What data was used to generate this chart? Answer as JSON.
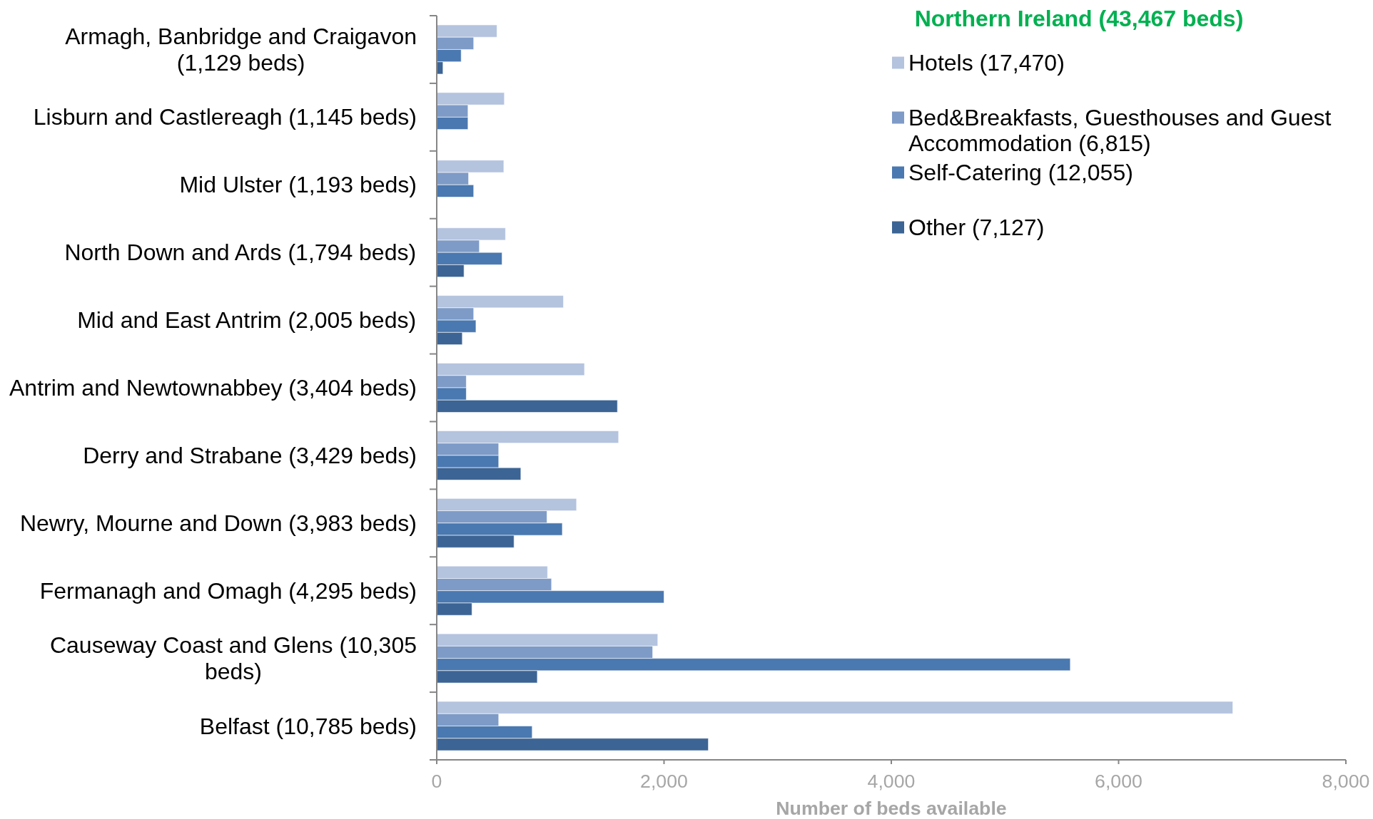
{
  "chart_data": {
    "type": "bar",
    "orientation": "horizontal",
    "title": "Northern Ireland (43,467 beds)",
    "xlabel": "Number of beds available",
    "categories": [
      "Armagh, Banbridge and Craigavon (1,129 beds)",
      "Lisburn and Castlereagh (1,145 beds)",
      "Mid Ulster (1,193 beds)",
      "North Down and Ards (1,794 beds)",
      "Mid and East Antrim (2,005 beds)",
      "Antrim and Newtownabbey (3,404 beds)",
      "Derry and Strabane (3,429 beds)",
      "Newry, Mourne and Down (3,983 beds)",
      "Fermanagh and Omagh (4,295 beds)",
      "Causeway Coast and Glens (10,305 beds)",
      "Belfast (10,785 beds)"
    ],
    "series": [
      {
        "name": "Hotels (17,470)",
        "color": "#b4c3de",
        "values": [
          530,
          595,
          590,
          605,
          1115,
          1300,
          1600,
          1230,
          975,
          1945,
          7005
        ]
      },
      {
        "name": "Bed&Breakfasts, Guesthouses and Guest Accommodation (6,815)",
        "color": "#7e9bc7",
        "values": [
          325,
          275,
          280,
          375,
          325,
          260,
          545,
          970,
          1010,
          1900,
          545
        ]
      },
      {
        "name": "Self-Catering (12,055)",
        "color": "#4a78b0",
        "values": [
          215,
          275,
          325,
          575,
          345,
          260,
          545,
          1105,
          2000,
          5575,
          840
        ]
      },
      {
        "name": "Other (7,127)",
        "color": "#3c6494",
        "values": [
          55,
          null,
          null,
          240,
          225,
          1590,
          740,
          680,
          310,
          885,
          2390
        ]
      }
    ],
    "xlim": [
      0,
      8000
    ],
    "xticks": [
      0,
      {
        "value": 2000,
        "label": "2,000"
      },
      {
        "value": 4000,
        "label": "4,000"
      },
      {
        "value": 6000,
        "label": "6,000"
      },
      {
        "value": 8000,
        "label": "8,000"
      }
    ],
    "legend": "top right"
  }
}
